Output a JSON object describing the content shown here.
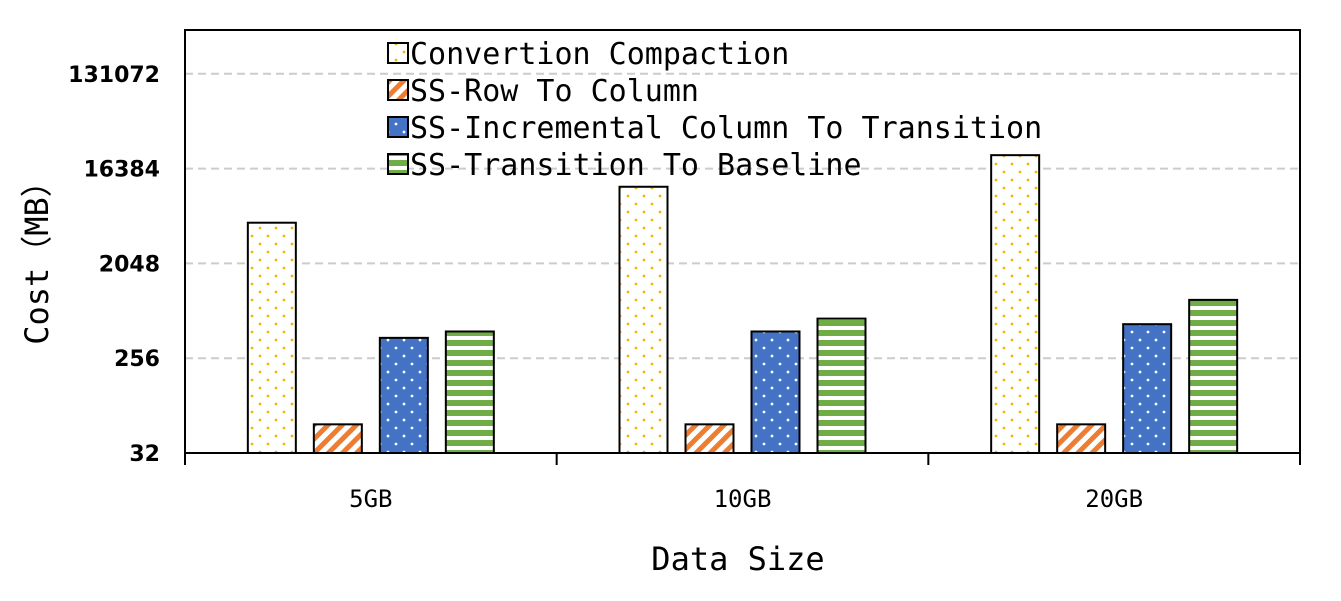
{
  "chart_data": {
    "type": "bar",
    "y_scale": "log2",
    "xlabel": "Data Size",
    "ylabel": "Cost（MB）",
    "categories": [
      "5GB",
      "10GB",
      "20GB"
    ],
    "ylim": [
      32,
      262144
    ],
    "yticks": [
      32,
      256,
      2048,
      16384,
      131072
    ],
    "ytick_labels": [
      "32",
      "256",
      "2048",
      "16384",
      "131072"
    ],
    "grid": "horizontal-dashed",
    "legend_position": "top",
    "series": [
      {
        "name": "Convertion Compaction",
        "pattern": "dots",
        "color": "#f2b705",
        "values": [
          5000,
          11000,
          22000
        ]
      },
      {
        "name": "SS-Row To Column",
        "pattern": "diagonal",
        "color": "#ed7d31",
        "values": [
          60,
          60,
          60
        ]
      },
      {
        "name": "SS-Incremental Column To Transition",
        "pattern": "dots",
        "color": "#4472c4",
        "values": [
          400,
          460,
          540
        ]
      },
      {
        "name": "SS-Transition To Baseline",
        "pattern": "horizontal",
        "color": "#70ad47",
        "values": [
          460,
          610,
          920
        ]
      }
    ]
  }
}
